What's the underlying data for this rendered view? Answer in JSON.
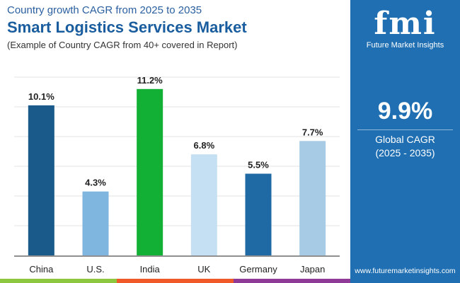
{
  "header": {
    "subtitle_top": "Country growth CAGR from 2025 to 2035",
    "title": "Smart Logistics Services Market",
    "subtitle": "(Example of Country CAGR from 40+ covered in Report)"
  },
  "panel": {
    "logo_text": "fmi",
    "logo_caption": "Future Market Insights",
    "cagr_value": "9.9%",
    "cagr_label": "Global CAGR",
    "cagr_period": "(2025 - 2035)",
    "url": "www.futuremarketinsights.com"
  },
  "colors": {
    "panel": "#1f6fb2",
    "strip": [
      "#8dc63f",
      "#f05a28",
      "#8e3a96",
      "#1f6fb2"
    ]
  },
  "chart_data": {
    "type": "bar",
    "categories": [
      "China",
      "U.S.",
      "India",
      "UK",
      "Germany",
      "Japan"
    ],
    "values": [
      10.1,
      4.3,
      11.2,
      6.8,
      5.5,
      7.7
    ],
    "labels": [
      "10.1%",
      "4.3%",
      "11.2%",
      "6.8%",
      "5.5%",
      "7.7%"
    ],
    "colors": [
      "#1a5a8a",
      "#7fb6e0",
      "#12b034",
      "#c5e0f2",
      "#1f6aa5",
      "#a7cbe4"
    ],
    "ylim": [
      0,
      12
    ],
    "grid": true,
    "legend": "none"
  }
}
